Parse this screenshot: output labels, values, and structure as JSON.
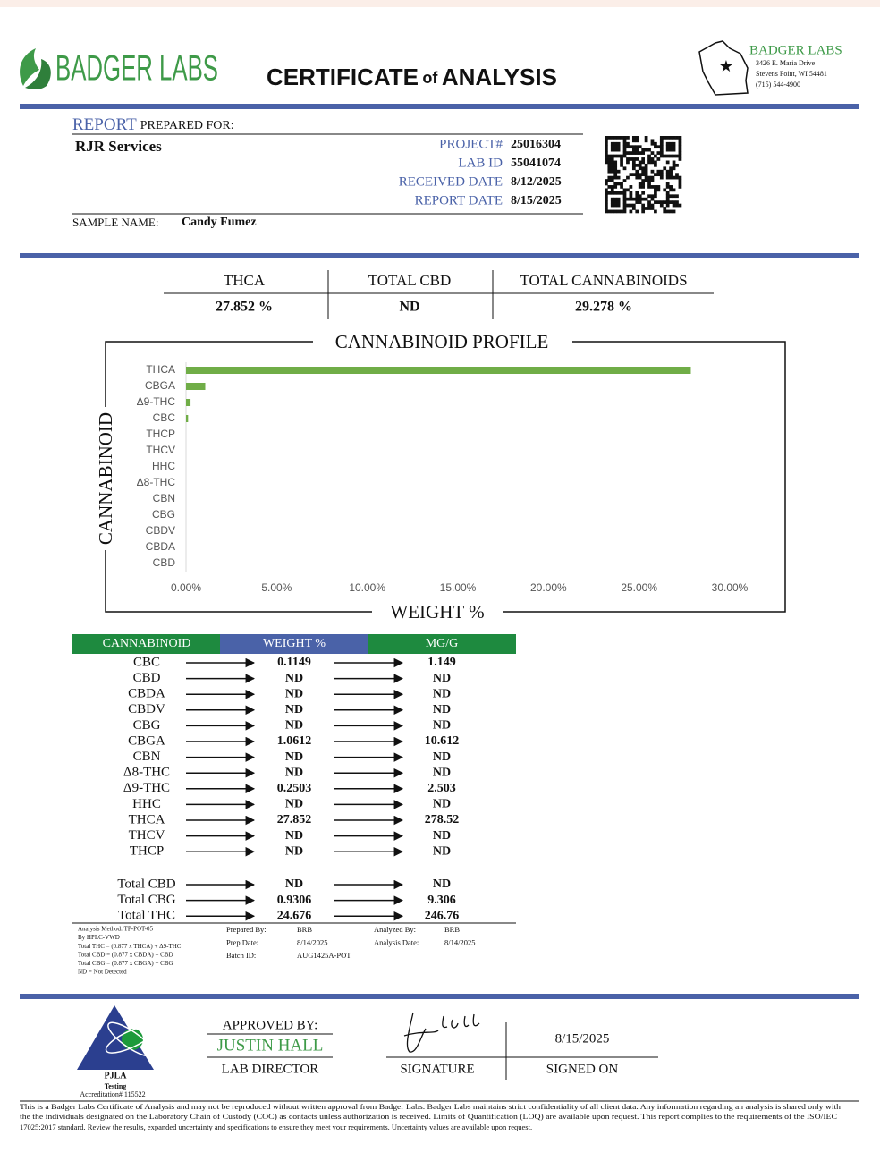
{
  "header": {
    "logo": "BADGER LABS",
    "title": [
      "CERTIFICATE",
      "of",
      "ANALYSIS"
    ],
    "lab": {
      "name": "BADGER LABS",
      "address": [
        "3426 E. Maria Drive",
        "Stevens Point, WI 54481",
        "(715) 544-4900"
      ]
    }
  },
  "report": {
    "label_1": "REPORT",
    "label_2": "PREPARED FOR:",
    "client": "RJR Services",
    "fields": [
      {
        "label": "PROJECT#",
        "value": "25016304"
      },
      {
        "label": "LAB ID",
        "value": "55041074"
      },
      {
        "label": "RECEIVED DATE",
        "value": "8/12/2025"
      },
      {
        "label": "REPORT DATE",
        "value": "8/15/2025"
      }
    ],
    "sample_label": "SAMPLE NAME:",
    "sample": "Candy Fumez"
  },
  "summary": {
    "headers": [
      "THCA",
      "TOTAL CBD",
      "TOTAL CANNABINOIDS"
    ],
    "values": [
      "27.852 %",
      "ND",
      "29.278 %"
    ]
  },
  "chart_data": {
    "type": "bar",
    "orientation": "horizontal",
    "title": "CANNABINOID PROFILE",
    "x_label": "WEIGHT %",
    "y_label": "CANNABINOID",
    "color": "#70ad47",
    "grid": false,
    "categories": [
      "THCA",
      "CBGA",
      "Δ9-THC",
      "CBC",
      "THCP",
      "THCV",
      "HHC",
      "Δ8-THC",
      "CBN",
      "CBG",
      "CBDV",
      "CBDA",
      "CBD"
    ],
    "values": [
      27.852,
      1.0612,
      0.2503,
      0.1149,
      null,
      null,
      null,
      null,
      null,
      null,
      null,
      null,
      null
    ],
    "xlim": [
      0,
      30
    ],
    "xticks": [
      {
        "value": 0,
        "label": "0.00%"
      },
      {
        "value": 5,
        "label": "5.00%"
      },
      {
        "value": 10,
        "label": "10.00%"
      },
      {
        "value": 15,
        "label": "15.00%"
      },
      {
        "value": 20,
        "label": "20.00%"
      },
      {
        "value": 25,
        "label": "25.00%"
      },
      {
        "value": 30,
        "label": "30.00%"
      }
    ]
  },
  "table": {
    "headers": [
      "CANNABINOID",
      "WEIGHT %",
      "MG/G"
    ],
    "rows": [
      [
        "CBC",
        "0.1149",
        "1.149"
      ],
      [
        "CBD",
        "ND",
        "ND"
      ],
      [
        "CBDA",
        "ND",
        "ND"
      ],
      [
        "CBDV",
        "ND",
        "ND"
      ],
      [
        "CBG",
        "ND",
        "ND"
      ],
      [
        "CBGA",
        "1.0612",
        "10.612"
      ],
      [
        "CBN",
        "ND",
        "ND"
      ],
      [
        "Δ8-THC",
        "ND",
        "ND"
      ],
      [
        "Δ9-THC",
        "0.2503",
        "2.503"
      ],
      [
        "HHC",
        "ND",
        "ND"
      ],
      [
        "THCA",
        "27.852",
        "278.52"
      ],
      [
        "THCV",
        "ND",
        "ND"
      ],
      [
        "THCP",
        "ND",
        "ND"
      ]
    ],
    "totals": [
      [
        "Total CBD",
        "ND",
        "ND"
      ],
      [
        "Total CBG",
        "0.9306",
        "9.306"
      ],
      [
        "Total THC",
        "24.676",
        "246.76"
      ]
    ]
  },
  "notes": [
    "Analysis Method: TP-POT-05",
    "By HPLC-VWD",
    "Total THC = (0.877 x  THCA) + Δ9-THC",
    "Total CBD = (0.877 x  CBDA) + CBD",
    "Total CBG = (0.877 x  CBGA) + CBG",
    "ND = Not Detected"
  ],
  "prep": [
    {
      "label": "Prepared By:",
      "value": "BRB"
    },
    {
      "label": "Prep Date:",
      "value": "8/14/2025"
    },
    {
      "label": "Batch ID:",
      "value": "AUG1425A-POT"
    }
  ],
  "analysis": [
    {
      "label": "Analyzed By:",
      "value": "BRB"
    },
    {
      "label": "Analysis Date:",
      "value": "8/14/2025"
    }
  ],
  "approval": {
    "label": "APPROVED BY:",
    "name": "JUSTIN HALL",
    "role": "LAB DIRECTOR",
    "signature_label": "SIGNATURE",
    "date": "8/15/2025",
    "date_label": "SIGNED ON"
  },
  "accreditation": [
    "PJLA",
    "Testing",
    "Accreditation# 115522"
  ],
  "disclaimer": [
    "This is a Badger Labs Certificate of Analysis and may not be reproduced without written approval from Badger Labs. Badger Labs maintains strict confidentiality of all client data. Any information regarding an analysis is shared only with",
    "the the individuals designated on the Laboratory Chain of Custody (COC) as contacts unless authorization is received. Limits of Quantification (LOQ) are available upon request. This report complies to the requirements of the ISO/IEC",
    "17025:2017 standard. Review the results, expanded uncertainty and specifications to ensure they meet your requirements. Uncertainty values are available upon request."
  ]
}
